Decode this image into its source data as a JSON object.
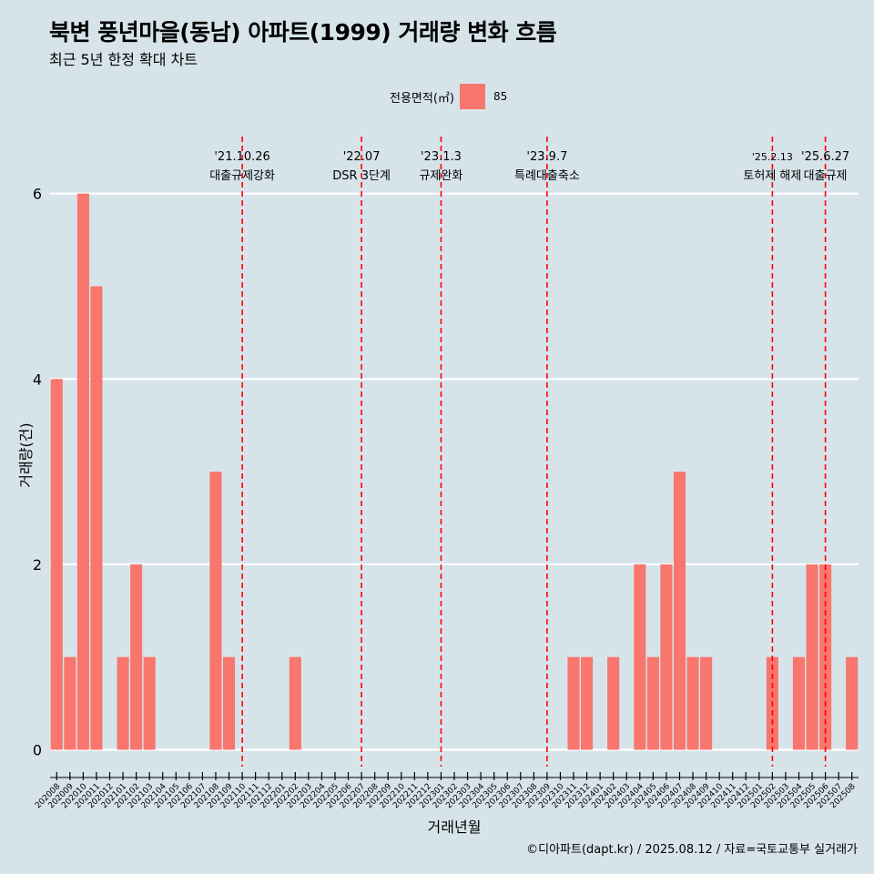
{
  "title": "북변 풍년마을(동남) 아파트(1999) 거래량 변화 흐름",
  "subtitle": "최근 5년 한정 확대 차트",
  "caption": "©디아파트(dapt.kr) / 2025.08.12 / 자료=국토교통부 실거래가",
  "legend": {
    "title": "전용면적(㎡)",
    "item": "85",
    "color": "#f8766d"
  },
  "chart_data": {
    "type": "bar",
    "xlabel": "거래년월",
    "ylabel": "거래량(건)",
    "ylim": [
      0,
      6.5
    ],
    "yticks": [
      0,
      2,
      4,
      6
    ],
    "grid": true,
    "categories": [
      "202008",
      "202009",
      "202010",
      "202011",
      "202012",
      "202101",
      "202102",
      "202103",
      "202104",
      "202105",
      "202106",
      "202107",
      "202108",
      "202109",
      "202110",
      "202111",
      "202112",
      "202201",
      "202202",
      "202203",
      "202204",
      "202205",
      "202206",
      "202207",
      "202208",
      "202209",
      "202210",
      "202211",
      "202212",
      "202301",
      "202302",
      "202303",
      "202304",
      "202305",
      "202306",
      "202307",
      "202308",
      "202309",
      "202310",
      "202311",
      "202312",
      "202401",
      "202402",
      "202403",
      "202404",
      "202405",
      "202406",
      "202407",
      "202408",
      "202409",
      "202410",
      "202411",
      "202412",
      "202501",
      "202502",
      "202503",
      "202504",
      "202505",
      "202506",
      "202507",
      "202508"
    ],
    "series": [
      {
        "name": "85",
        "values": [
          4,
          1,
          6,
          5,
          0,
          1,
          2,
          1,
          0,
          0,
          0,
          0,
          3,
          1,
          0,
          0,
          0,
          0,
          1,
          0,
          0,
          0,
          0,
          0,
          0,
          0,
          0,
          0,
          0,
          0,
          0,
          0,
          0,
          0,
          0,
          0,
          0,
          0,
          0,
          1,
          1,
          0,
          1,
          0,
          2,
          1,
          2,
          3,
          1,
          1,
          0,
          0,
          0,
          0,
          1,
          0,
          1,
          2,
          2,
          0,
          1
        ]
      }
    ],
    "annotations": [
      {
        "date": "'21.10.26",
        "label": "대출규제강화",
        "category": "202110"
      },
      {
        "date": "'22.07",
        "label": "DSR 3단계",
        "category": "202207"
      },
      {
        "date": "'23.1.3",
        "label": "규제완화",
        "category": "202301"
      },
      {
        "date": "'23.9.7",
        "label": "특례대출축소",
        "category": "202309"
      },
      {
        "date": "'25.2.13",
        "label": "토허제 해제",
        "category": "202502"
      },
      {
        "date": "'25.6.27",
        "label": "대출규제",
        "category": "202506"
      }
    ]
  }
}
